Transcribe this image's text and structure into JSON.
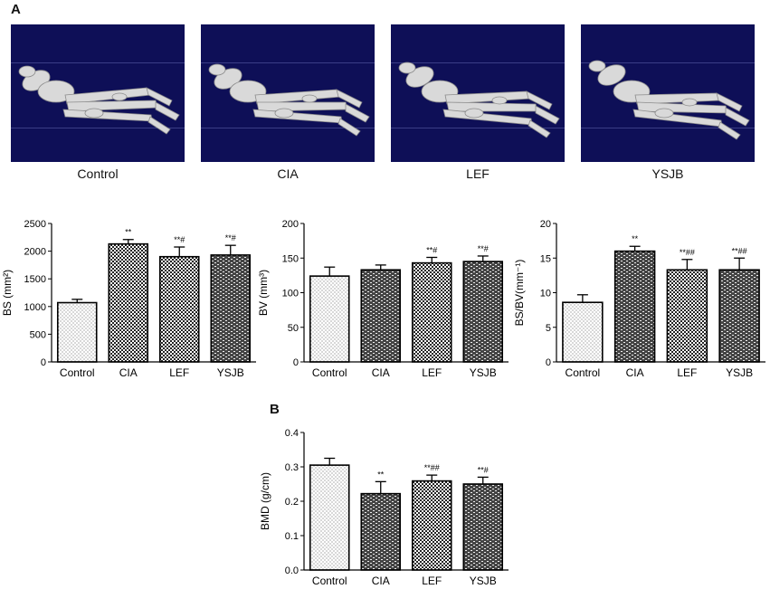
{
  "panel_labels": {
    "a": "A",
    "b": "B"
  },
  "scans": [
    {
      "label": "Control"
    },
    {
      "label": "CIA"
    },
    {
      "label": "LEF"
    },
    {
      "label": "YSJB"
    }
  ],
  "colors": {
    "scan_bg": "#0e0f57",
    "bone": "#d9d9d9",
    "bar_stroke": "#000000"
  },
  "chart_data": [
    {
      "type": "bar",
      "ylabel": "BS (mm²)",
      "ylim": [
        0,
        2500
      ],
      "yticks": [
        "0",
        "500",
        "1000",
        "1500",
        "2000",
        "2500"
      ],
      "categories": [
        "Control",
        "CIA",
        "LEF",
        "YSJB"
      ],
      "values": [
        1070,
        2130,
        1900,
        1930
      ],
      "errors": [
        60,
        80,
        175,
        175
      ],
      "annotations": [
        "",
        "**",
        "**#",
        "**#"
      ],
      "patterns": [
        "dots",
        "checker",
        "checker",
        "brick"
      ]
    },
    {
      "type": "bar",
      "ylabel": "BV (mm³)",
      "ylim": [
        0,
        200
      ],
      "yticks": [
        "0",
        "50",
        "100",
        "150",
        "200"
      ],
      "categories": [
        "Control",
        "CIA",
        "LEF",
        "YSJB"
      ],
      "values": [
        124,
        133,
        143,
        145
      ],
      "errors": [
        13,
        7,
        8,
        8
      ],
      "annotations": [
        "",
        "",
        "**#",
        "**#"
      ],
      "patterns": [
        "dots",
        "brick",
        "checker",
        "brick"
      ]
    },
    {
      "type": "bar",
      "ylabel": "BS/BV(mm⁻¹)",
      "ylim": [
        0,
        20
      ],
      "yticks": [
        "0",
        "5",
        "10",
        "15",
        "20"
      ],
      "categories": [
        "Control",
        "CIA",
        "LEF",
        "YSJB"
      ],
      "values": [
        8.6,
        16.0,
        13.3,
        13.3
      ],
      "errors": [
        1.1,
        0.7,
        1.5,
        1.7
      ],
      "annotations": [
        "",
        "**",
        "**##",
        "**##"
      ],
      "patterns": [
        "dots",
        "brick",
        "checker",
        "brick"
      ]
    },
    {
      "type": "bar",
      "ylabel": "BMD (g/cm)",
      "ylim": [
        0,
        0.4
      ],
      "yticks": [
        "0.0",
        "0.1",
        "0.2",
        "0.3",
        "0.4"
      ],
      "categories": [
        "Control",
        "CIA",
        "LEF",
        "YSJB"
      ],
      "values": [
        0.305,
        0.222,
        0.259,
        0.25
      ],
      "errors": [
        0.02,
        0.035,
        0.017,
        0.02
      ],
      "annotations": [
        "",
        "**",
        "**##",
        "**#"
      ],
      "patterns": [
        "dots",
        "brick",
        "checker",
        "brick"
      ]
    }
  ]
}
